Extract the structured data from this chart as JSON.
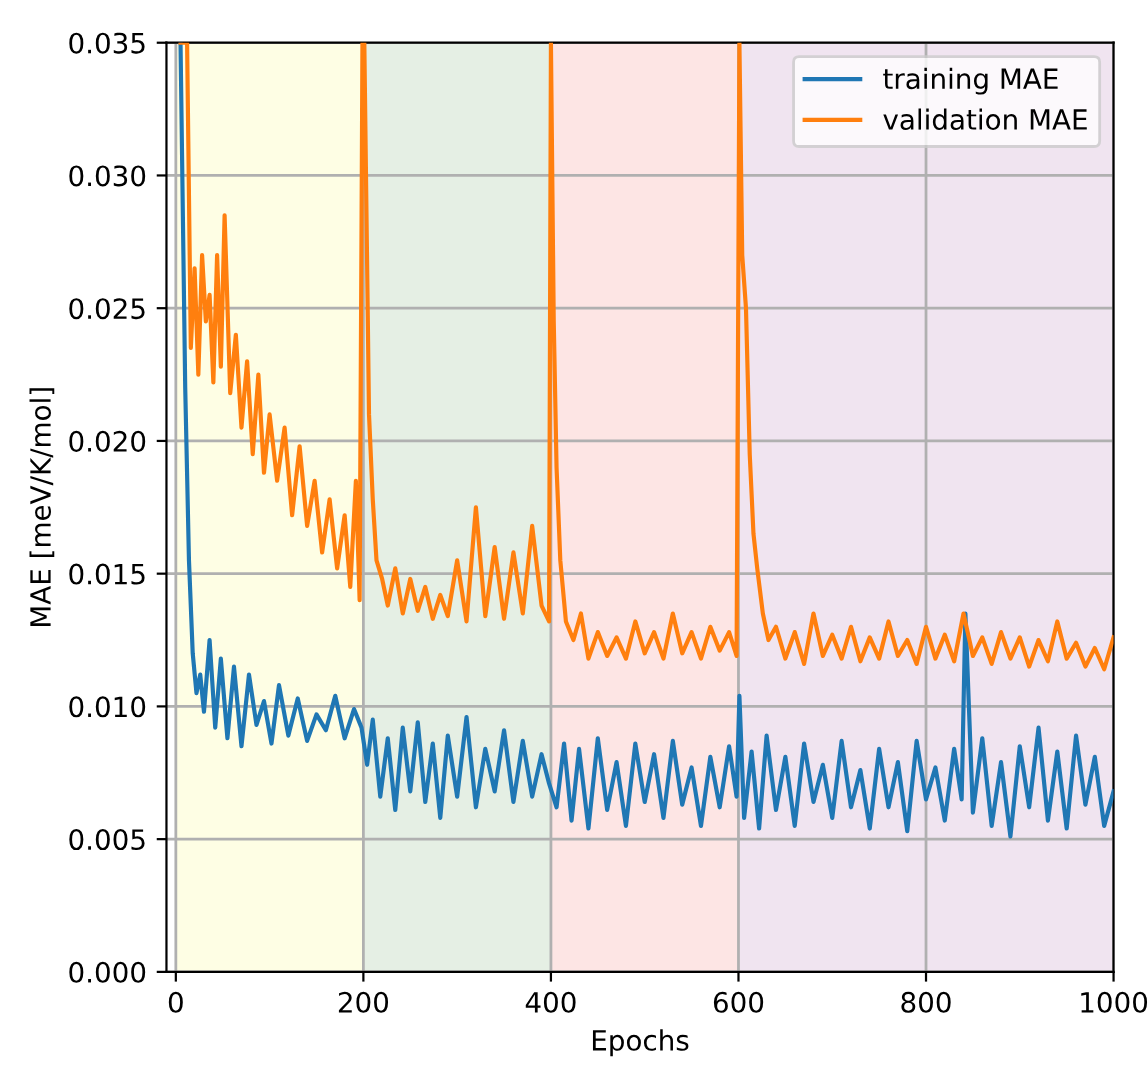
{
  "chart_data": {
    "type": "line",
    "xlabel": "Epochs",
    "ylabel": "MAE [meV/K/mol]",
    "xlim": [
      -10,
      1000
    ],
    "xticks": [
      0,
      200,
      400,
      600,
      800,
      1000
    ],
    "ylim": [
      0,
      0.035
    ],
    "yticks": [
      {
        "value": 0,
        "label": "0.000"
      },
      {
        "value": 0.005,
        "label": "0.005"
      },
      {
        "value": 0.01,
        "label": "0.010"
      },
      {
        "value": 0.015,
        "label": "0.015"
      },
      {
        "value": 0.02,
        "label": "0.020"
      },
      {
        "value": 0.025,
        "label": "0.025"
      },
      {
        "value": 0.03,
        "label": "0.030"
      },
      {
        "value": 0.035,
        "label": "0.035"
      }
    ],
    "grid": true,
    "legend": "top right",
    "line_style": "solid",
    "bands": [
      {
        "axis": "x",
        "from": 0,
        "to": 200,
        "color": "#fefee4",
        "label": null
      },
      {
        "axis": "x",
        "from": 200,
        "to": 400,
        "color": "#e5efe4",
        "label": null
      },
      {
        "axis": "x",
        "from": 400,
        "to": 600,
        "color": "#fde5e4",
        "label": null
      },
      {
        "axis": "x",
        "from": 600,
        "to": 1000,
        "color": "#f0e4f0",
        "label": null
      }
    ],
    "series": [
      {
        "name": "training MAE",
        "color": "#1f77b4",
        "x": [
          5,
          10,
          14,
          18,
          22,
          26,
          30,
          36,
          42,
          48,
          55,
          62,
          70,
          78,
          86,
          94,
          102,
          110,
          120,
          130,
          140,
          150,
          160,
          170,
          180,
          190,
          198,
          204,
          210,
          218,
          226,
          234,
          242,
          250,
          258,
          266,
          274,
          282,
          290,
          300,
          310,
          320,
          330,
          340,
          350,
          360,
          370,
          380,
          390,
          398,
          406,
          414,
          422,
          430,
          440,
          450,
          460,
          470,
          480,
          490,
          500,
          510,
          520,
          530,
          540,
          550,
          560,
          570,
          580,
          590,
          598,
          601,
          606,
          614,
          622,
          630,
          640,
          650,
          660,
          670,
          680,
          690,
          700,
          710,
          720,
          730,
          740,
          750,
          760,
          770,
          780,
          790,
          800,
          810,
          820,
          830,
          838,
          842,
          850,
          860,
          870,
          880,
          890,
          900,
          910,
          920,
          930,
          940,
          950,
          960,
          970,
          980,
          990,
          1000
        ],
        "values": [
          0.035,
          0.022,
          0.0155,
          0.012,
          0.0105,
          0.0112,
          0.0098,
          0.0125,
          0.0092,
          0.0118,
          0.0088,
          0.0115,
          0.0085,
          0.0112,
          0.0093,
          0.0102,
          0.0086,
          0.0108,
          0.0089,
          0.0103,
          0.0087,
          0.0097,
          0.0091,
          0.0104,
          0.0088,
          0.0099,
          0.0092,
          0.0078,
          0.0095,
          0.0066,
          0.0088,
          0.0061,
          0.0092,
          0.0068,
          0.0094,
          0.0064,
          0.0086,
          0.0058,
          0.0089,
          0.0066,
          0.0096,
          0.0062,
          0.0084,
          0.0068,
          0.0091,
          0.0064,
          0.0087,
          0.0066,
          0.0082,
          0.0071,
          0.0062,
          0.0086,
          0.0057,
          0.0084,
          0.0054,
          0.0088,
          0.0061,
          0.0079,
          0.0055,
          0.0086,
          0.0064,
          0.0082,
          0.0058,
          0.0087,
          0.0063,
          0.0077,
          0.0055,
          0.0081,
          0.0062,
          0.0085,
          0.0066,
          0.0104,
          0.0058,
          0.0083,
          0.0054,
          0.0089,
          0.0061,
          0.0081,
          0.0055,
          0.0086,
          0.0064,
          0.0078,
          0.0058,
          0.0087,
          0.0062,
          0.0076,
          0.0054,
          0.0084,
          0.0062,
          0.0079,
          0.0053,
          0.0087,
          0.0065,
          0.0077,
          0.0057,
          0.0084,
          0.0065,
          0.0135,
          0.006,
          0.0088,
          0.0055,
          0.0079,
          0.0051,
          0.0085,
          0.0062,
          0.0092,
          0.0057,
          0.0083,
          0.0054,
          0.0089,
          0.0063,
          0.0081,
          0.0055,
          0.0068
        ]
      },
      {
        "name": "validation MAE",
        "color": "#ff7f0e",
        "x": [
          5,
          12,
          16,
          20,
          24,
          28,
          32,
          36,
          40,
          44,
          48,
          52,
          58,
          64,
          70,
          76,
          82,
          88,
          94,
          100,
          108,
          116,
          124,
          132,
          140,
          148,
          156,
          164,
          172,
          180,
          186,
          192,
          196,
          199,
          201,
          206,
          210,
          214,
          220,
          226,
          234,
          242,
          250,
          258,
          266,
          274,
          282,
          290,
          300,
          310,
          320,
          330,
          340,
          350,
          360,
          370,
          380,
          390,
          398,
          400,
          403,
          406,
          410,
          416,
          424,
          432,
          440,
          450,
          460,
          470,
          480,
          490,
          500,
          510,
          520,
          530,
          540,
          550,
          560,
          570,
          580,
          590,
          598,
          601,
          604,
          608,
          612,
          616,
          620,
          626,
          632,
          640,
          650,
          660,
          670,
          680,
          690,
          700,
          710,
          720,
          730,
          740,
          750,
          760,
          770,
          780,
          790,
          800,
          810,
          820,
          830,
          840,
          850,
          860,
          870,
          880,
          890,
          900,
          910,
          920,
          930,
          940,
          950,
          960,
          970,
          980,
          990,
          1000
        ],
        "values": [
          0.035,
          0.035,
          0.0235,
          0.0265,
          0.0225,
          0.027,
          0.0245,
          0.0255,
          0.0222,
          0.027,
          0.0228,
          0.0285,
          0.0218,
          0.024,
          0.0205,
          0.023,
          0.0195,
          0.0225,
          0.0188,
          0.021,
          0.0185,
          0.0205,
          0.0172,
          0.0198,
          0.0168,
          0.0185,
          0.0158,
          0.0178,
          0.0152,
          0.0172,
          0.0145,
          0.0185,
          0.014,
          0.035,
          0.035,
          0.021,
          0.0178,
          0.0155,
          0.0148,
          0.0138,
          0.0152,
          0.0135,
          0.0148,
          0.0136,
          0.0145,
          0.0133,
          0.0142,
          0.0134,
          0.0155,
          0.0132,
          0.0175,
          0.0134,
          0.016,
          0.0133,
          0.0158,
          0.0135,
          0.0168,
          0.0138,
          0.0132,
          0.035,
          0.0245,
          0.019,
          0.0155,
          0.0132,
          0.0125,
          0.0135,
          0.0118,
          0.0128,
          0.0119,
          0.0126,
          0.0118,
          0.0132,
          0.012,
          0.0128,
          0.0118,
          0.0135,
          0.012,
          0.0128,
          0.0118,
          0.013,
          0.0121,
          0.0128,
          0.0119,
          0.035,
          0.027,
          0.025,
          0.0195,
          0.0165,
          0.0152,
          0.0135,
          0.0125,
          0.013,
          0.0118,
          0.0128,
          0.0116,
          0.0135,
          0.0119,
          0.0127,
          0.0118,
          0.013,
          0.0117,
          0.0126,
          0.0118,
          0.0132,
          0.0119,
          0.0125,
          0.0116,
          0.013,
          0.0118,
          0.0127,
          0.0117,
          0.0135,
          0.0119,
          0.0126,
          0.0116,
          0.0128,
          0.0118,
          0.0126,
          0.0115,
          0.0125,
          0.0117,
          0.0132,
          0.0118,
          0.0124,
          0.0115,
          0.0122,
          0.0114,
          0.0126
        ]
      }
    ]
  }
}
